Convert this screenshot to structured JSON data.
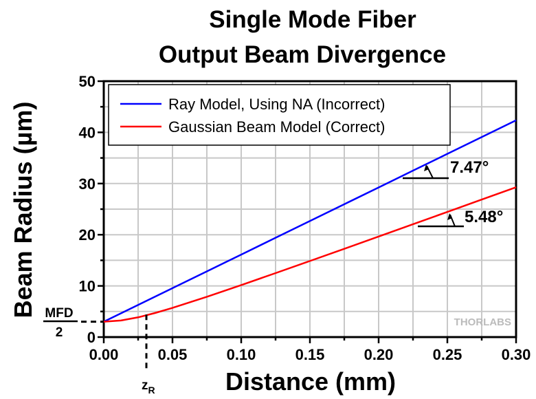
{
  "chart_data": {
    "type": "line",
    "title": "Single Mode Fiber",
    "subtitle": "Output Beam Divergence",
    "xlabel": "Distance (mm)",
    "ylabel": "Beam Radius (µm)",
    "xlim": [
      0,
      0.3
    ],
    "ylim": [
      0,
      50
    ],
    "x_ticks": [
      "0.00",
      "0.05",
      "0.10",
      "0.15",
      "0.20",
      "0.25",
      "0.30"
    ],
    "y_ticks": [
      "0",
      "10",
      "20",
      "30",
      "40",
      "50"
    ],
    "grid": true,
    "legend_position": "top-left",
    "series": [
      {
        "name": "Ray Model, Using NA (Incorrect)",
        "color": "#0000ff",
        "x": [
          0,
          0.025,
          0.05,
          0.075,
          0.1,
          0.125,
          0.15,
          0.175,
          0.2,
          0.225,
          0.25,
          0.275,
          0.3
        ],
        "y": [
          3,
          6.28,
          9.56,
          12.84,
          16.12,
          19.4,
          22.68,
          25.96,
          29.24,
          32.52,
          35.8,
          39.08,
          42.36
        ]
      },
      {
        "name": "Gaussian Beam Model (Correct)",
        "color": "#ff0000",
        "x": [
          0,
          0.0125,
          0.025,
          0.0375,
          0.05,
          0.075,
          0.1,
          0.125,
          0.15,
          0.175,
          0.2,
          0.225,
          0.25,
          0.275,
          0.3
        ],
        "y": [
          3,
          3.24,
          3.86,
          4.72,
          5.71,
          7.87,
          10.16,
          12.5,
          14.87,
          17.25,
          19.65,
          22.05,
          24.46,
          26.87,
          29.28
        ]
      }
    ],
    "annotations": {
      "ray_angle": "7.47°",
      "gaussian_angle": "5.48°",
      "mfd_numerator": "MFD",
      "mfd_denominator": "2",
      "zr_main": "z",
      "zr_sub": "R",
      "zr_value": 0.031,
      "mfd_half_value": 3
    },
    "watermark": "THORLABS"
  }
}
